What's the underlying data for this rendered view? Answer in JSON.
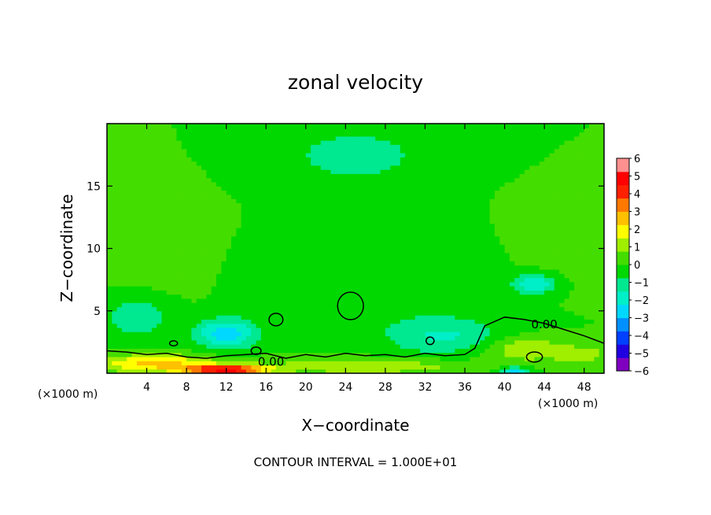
{
  "chart_data": {
    "type": "heatmap",
    "title": "zonal velocity",
    "xlabel": "X−coordinate",
    "ylabel": "Z−coordinate",
    "x_unit_left": "(×1000 m)",
    "x_unit_right": "(×1000 m)",
    "xlim": [
      0,
      50
    ],
    "ylim": [
      0,
      20
    ],
    "x_ticks": [
      4,
      8,
      12,
      16,
      20,
      24,
      28,
      32,
      36,
      40,
      44,
      48
    ],
    "y_ticks": [
      5,
      10,
      15
    ],
    "x_tick_labels": [
      "4",
      "8",
      "12",
      "16",
      "20",
      "24",
      "28",
      "32",
      "36",
      "40",
      "44",
      "48"
    ],
    "y_tick_labels": [
      "5",
      "10",
      "15"
    ],
    "colorbar": {
      "min": -6,
      "max": 6,
      "ticks": [
        6,
        5,
        4,
        3,
        2,
        1,
        0,
        -1,
        -2,
        -3,
        -4,
        -5,
        -6
      ],
      "tick_labels": [
        "6",
        "5",
        "4",
        "3",
        "2",
        "1",
        "0",
        "−1",
        "−2",
        "−3",
        "−4",
        "−5",
        "−6"
      ],
      "colors": [
        "#8000c0",
        "#2000e0",
        "#0040ff",
        "#0090ff",
        "#00d8ff",
        "#00eec8",
        "#00e890",
        "#00d800",
        "#44dd00",
        "#a0ee00",
        "#ffff00",
        "#ffc000",
        "#ff7800",
        "#ff2000",
        "#ff0000",
        "#ff9090"
      ]
    },
    "contour_label": "0.00",
    "contour_interval_text": "CONTOUR INTERVAL = 1.000E+01",
    "background_value": 0,
    "features": [
      {
        "kind": "blob",
        "x": 25,
        "z": 17.5,
        "sx": 7,
        "sz": 2.2,
        "value": -1.2
      },
      {
        "kind": "blob",
        "x": 28,
        "z": 7,
        "sx": 10,
        "sz": 3.5,
        "value": -0.6
      },
      {
        "kind": "blob",
        "x": 43,
        "z": 7.2,
        "sx": 2.2,
        "sz": 0.8,
        "value": -2.2
      },
      {
        "kind": "blob",
        "x": 46,
        "z": 10,
        "sx": 5,
        "sz": 3,
        "value": 0.3
      },
      {
        "kind": "blob",
        "x": 5,
        "z": 10,
        "sx": 5,
        "sz": 4,
        "value": 0.2
      },
      {
        "kind": "blob",
        "x": 12,
        "z": 3.2,
        "sx": 3,
        "sz": 1.2,
        "value": -2.8
      },
      {
        "kind": "blob",
        "x": 3,
        "z": 4.5,
        "sx": 3,
        "sz": 1.5,
        "value": -1.5
      },
      {
        "kind": "blob",
        "x": 34,
        "z": 3,
        "sx": 6,
        "sz": 1.5,
        "value": -1.5
      },
      {
        "kind": "blob",
        "x": 42,
        "z": 2,
        "sx": 4,
        "sz": 1,
        "value": 1.5
      },
      {
        "kind": "blob",
        "x": 12,
        "z": 0.3,
        "sx": 4,
        "sz": 0.35,
        "value": 5
      },
      {
        "kind": "blob",
        "x": 5,
        "z": 0.8,
        "sx": 6,
        "sz": 0.7,
        "value": 2.5
      },
      {
        "kind": "blob",
        "x": 26,
        "z": 0.6,
        "sx": 10,
        "sz": 0.6,
        "value": 1.5
      },
      {
        "kind": "blob",
        "x": 41,
        "z": 0.2,
        "sx": 1.5,
        "sz": 0.3,
        "value": -3
      },
      {
        "kind": "blob",
        "x": 48,
        "z": 1.5,
        "sx": 3,
        "sz": 0.8,
        "value": 1
      }
    ],
    "zero_contour_main_x": [
      0,
      2,
      4,
      6,
      8,
      10,
      12,
      14,
      16,
      18,
      20,
      22,
      24,
      26,
      28,
      30,
      32,
      34,
      36,
      37,
      38,
      40,
      42,
      44,
      46,
      48,
      50
    ],
    "zero_contour_main_z": [
      1.8,
      1.7,
      1.5,
      1.6,
      1.3,
      1.2,
      1.4,
      1.5,
      1.6,
      1.2,
      1.5,
      1.3,
      1.6,
      1.4,
      1.5,
      1.3,
      1.6,
      1.4,
      1.5,
      2.0,
      3.8,
      4.5,
      4.3,
      4.0,
      3.5,
      3.0,
      2.4
    ],
    "zero_contour_blobs": [
      {
        "x": 24.5,
        "z": 5.4,
        "rx": 1.3,
        "rz": 1.1
      },
      {
        "x": 17,
        "z": 4.3,
        "rx": 0.7,
        "rz": 0.5
      },
      {
        "x": 6.7,
        "z": 2.4,
        "rx": 0.4,
        "rz": 0.2
      },
      {
        "x": 15,
        "z": 1.8,
        "rx": 0.5,
        "rz": 0.3
      },
      {
        "x": 32.5,
        "z": 2.6,
        "rx": 0.4,
        "rz": 0.3
      },
      {
        "x": 43,
        "z": 1.3,
        "rx": 0.8,
        "rz": 0.4
      }
    ]
  }
}
